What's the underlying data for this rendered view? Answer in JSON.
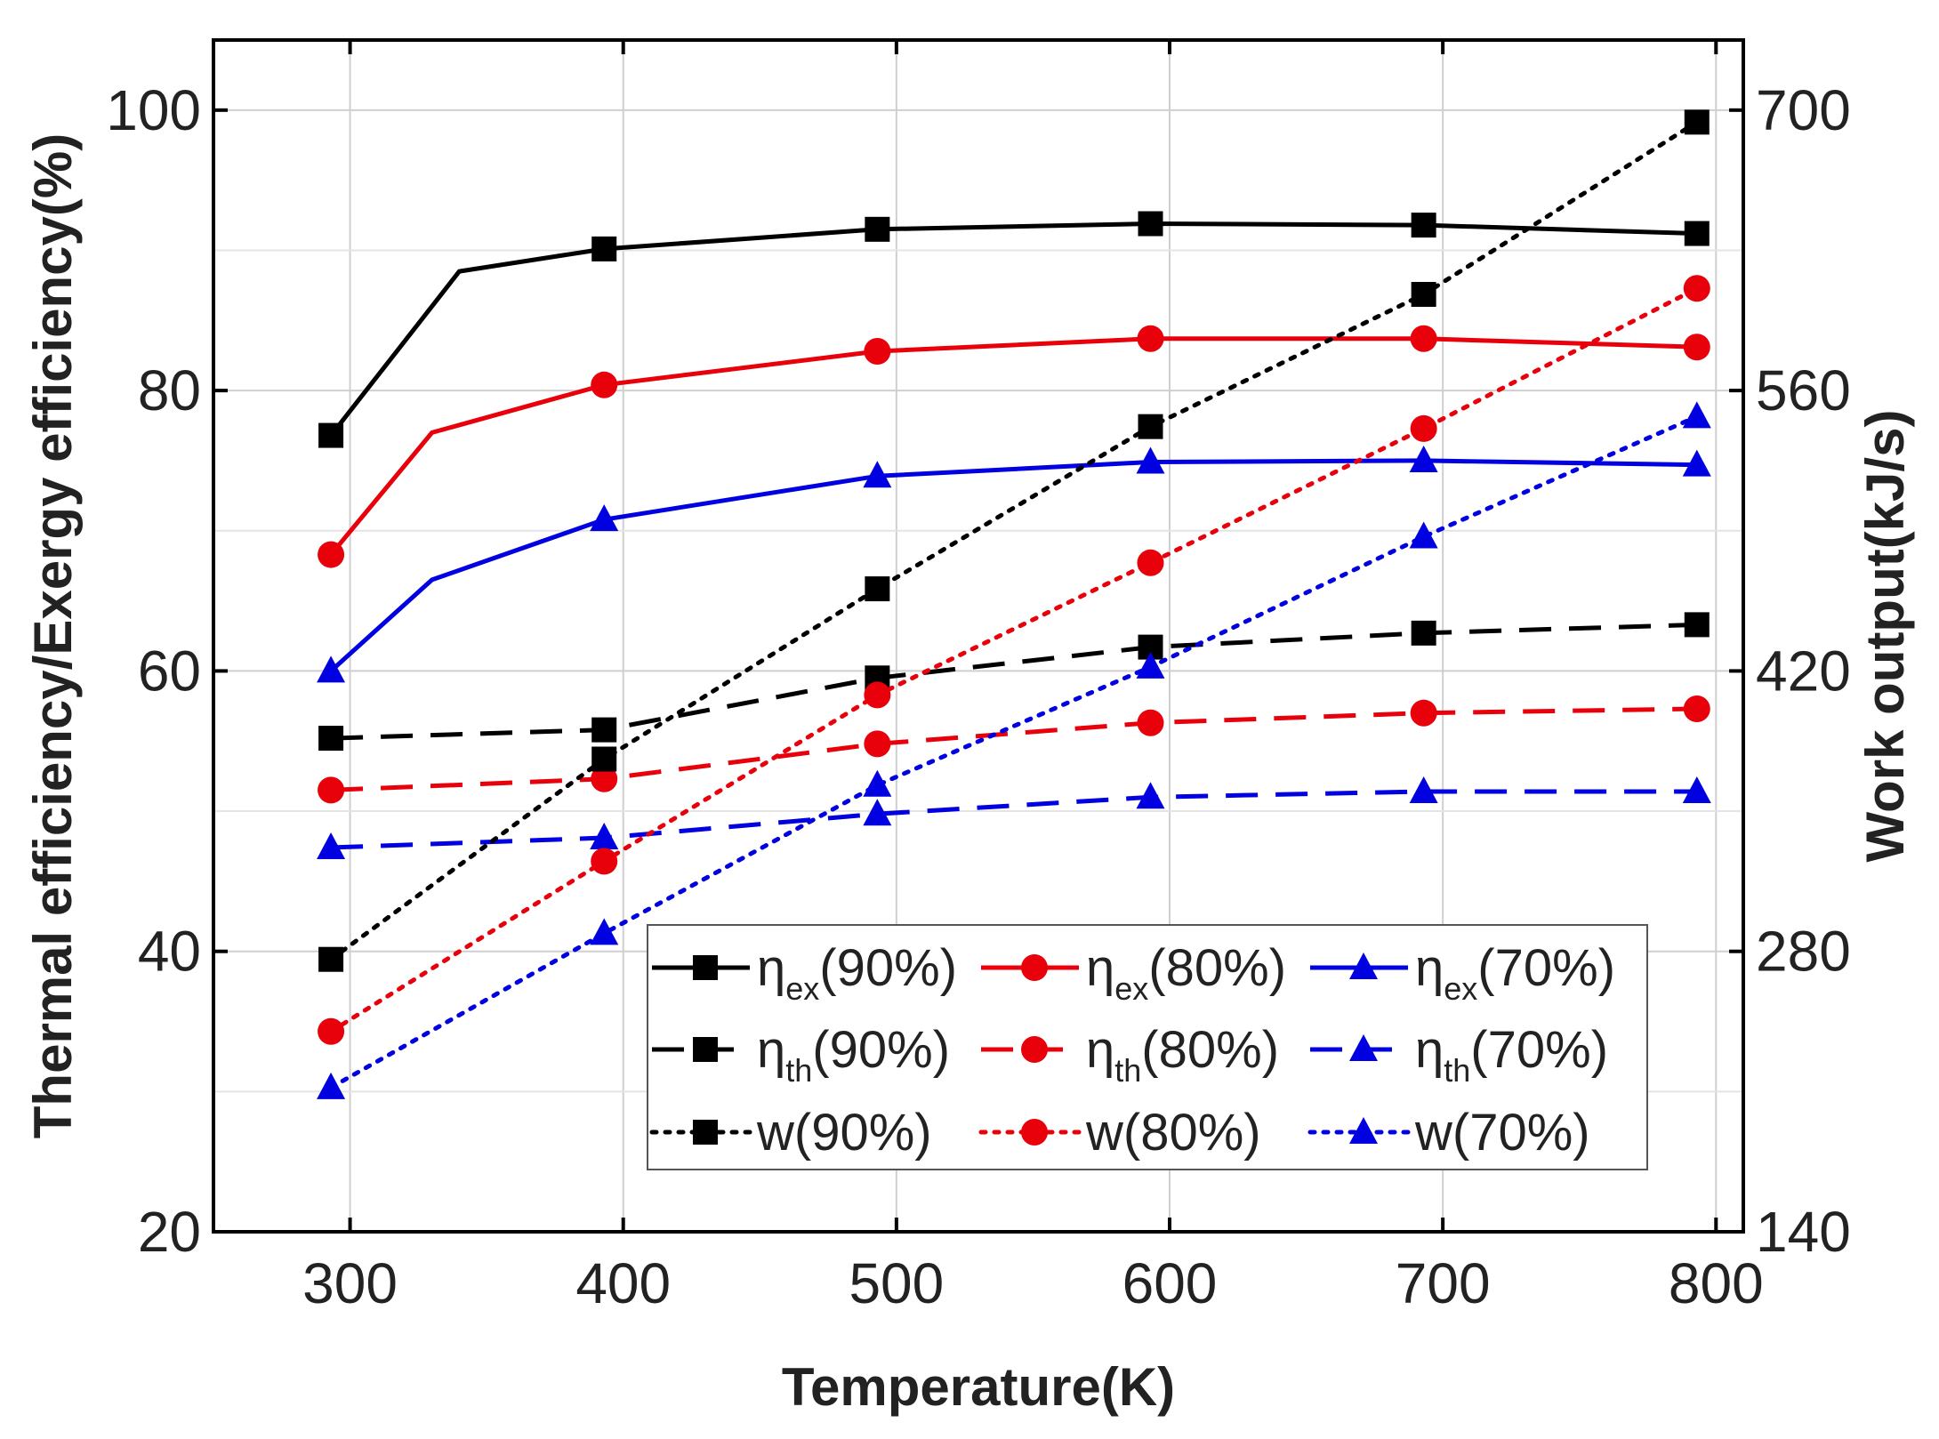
{
  "chart_data": {
    "type": "line",
    "xlabel": "Temperature(K)",
    "ylabel": "Thermal efficiency/Exergy efficiency(%)",
    "y2label": "Work output(kJ/s)",
    "xlim": [
      250,
      810
    ],
    "ylim": [
      20,
      105
    ],
    "y2lim": [
      140,
      735
    ],
    "x_ticks": [
      "300",
      "400",
      "500",
      "600",
      "700",
      "800"
    ],
    "x_tick_values": [
      300,
      400,
      500,
      600,
      700,
      800
    ],
    "y_ticks": [
      "20",
      "40",
      "60",
      "80",
      "100"
    ],
    "y_tick_values": [
      20,
      40,
      60,
      80,
      100
    ],
    "y2_ticks": [
      "140",
      "280",
      "420",
      "560",
      "700"
    ],
    "y2_tick_values": [
      140,
      280,
      420,
      560,
      700
    ],
    "grid": true,
    "legend_position": "bottom-right",
    "series": [
      {
        "name": "ηex(90%)",
        "symbol": "η",
        "sub": "ex",
        "pct": "(90%)",
        "color": "#000000",
        "dash": "solid",
        "marker": "square",
        "axis": "left",
        "x": [
          293,
          340,
          393,
          493,
          593,
          693,
          793
        ],
        "values": [
          76.8,
          88.5,
          90.1,
          91.5,
          91.9,
          91.8,
          91.2
        ],
        "marker_at": [
          0,
          2,
          3,
          4,
          5,
          6
        ]
      },
      {
        "name": "ηex(80%)",
        "symbol": "η",
        "sub": "ex",
        "pct": "(80%)",
        "color": "#e8000b",
        "dash": "solid",
        "marker": "circle",
        "axis": "left",
        "x": [
          293,
          330,
          393,
          493,
          593,
          693,
          793
        ],
        "values": [
          68.3,
          77.0,
          80.4,
          82.8,
          83.7,
          83.7,
          83.1
        ],
        "marker_at": [
          0,
          2,
          3,
          4,
          5,
          6
        ]
      },
      {
        "name": "ηex(70%)",
        "symbol": "η",
        "sub": "ex",
        "pct": "(70%)",
        "color": "#0000e0",
        "dash": "solid",
        "marker": "triangle",
        "axis": "left",
        "x": [
          293,
          330,
          393,
          493,
          593,
          693,
          793
        ],
        "values": [
          60.0,
          66.5,
          70.8,
          73.9,
          74.9,
          75.0,
          74.7
        ],
        "marker_at": [
          0,
          2,
          3,
          4,
          5,
          6
        ]
      },
      {
        "name": "ηth(90%)",
        "symbol": "η",
        "sub": "th",
        "pct": "(90%)",
        "color": "#000000",
        "dash": "dashed",
        "marker": "square",
        "axis": "left",
        "x": [
          293,
          393,
          493,
          593,
          693,
          793
        ],
        "values": [
          55.2,
          55.8,
          59.5,
          61.7,
          62.7,
          63.3
        ],
        "marker_at": [
          0,
          1,
          2,
          3,
          4,
          5
        ]
      },
      {
        "name": "ηth(80%)",
        "symbol": "η",
        "sub": "th",
        "pct": "(80%)",
        "color": "#e8000b",
        "dash": "dashed",
        "marker": "circle",
        "axis": "left",
        "x": [
          293,
          393,
          493,
          593,
          693,
          793
        ],
        "values": [
          51.5,
          52.3,
          54.8,
          56.3,
          57.0,
          57.3
        ],
        "marker_at": [
          0,
          1,
          2,
          3,
          4,
          5
        ]
      },
      {
        "name": "ηth(70%)",
        "symbol": "η",
        "sub": "th",
        "pct": "(70%)",
        "color": "#0000e0",
        "dash": "dashed",
        "marker": "triangle",
        "axis": "left",
        "x": [
          293,
          393,
          493,
          593,
          693,
          793
        ],
        "values": [
          47.4,
          48.1,
          49.8,
          51.0,
          51.4,
          51.4
        ],
        "marker_at": [
          0,
          1,
          2,
          3,
          4,
          5
        ]
      },
      {
        "name": "w(90%)",
        "symbol": "w",
        "sub": "",
        "pct": "(90%)",
        "color": "#000000",
        "dash": "dotted",
        "marker": "square",
        "axis": "right",
        "x": [
          293,
          393,
          493,
          593,
          693,
          793
        ],
        "values": [
          276,
          376,
          461,
          542,
          608,
          694
        ],
        "marker_at": [
          0,
          1,
          2,
          3,
          4,
          5
        ]
      },
      {
        "name": "w(80%)",
        "symbol": "w",
        "sub": "",
        "pct": "(80%)",
        "color": "#e8000b",
        "dash": "dotted",
        "marker": "circle",
        "axis": "right",
        "x": [
          293,
          393,
          493,
          593,
          693,
          793
        ],
        "values": [
          240,
          325,
          408,
          474,
          541,
          611
        ],
        "marker_at": [
          0,
          1,
          2,
          3,
          4,
          5
        ]
      },
      {
        "name": "w(70%)",
        "symbol": "w",
        "sub": "",
        "pct": "(70%)",
        "color": "#0000e0",
        "dash": "dotted",
        "marker": "triangle",
        "axis": "right",
        "x": [
          293,
          393,
          493,
          593,
          693,
          793
        ],
        "values": [
          212,
          289,
          363,
          422,
          487,
          547
        ],
        "marker_at": [
          0,
          1,
          2,
          3,
          4,
          5
        ]
      }
    ]
  }
}
